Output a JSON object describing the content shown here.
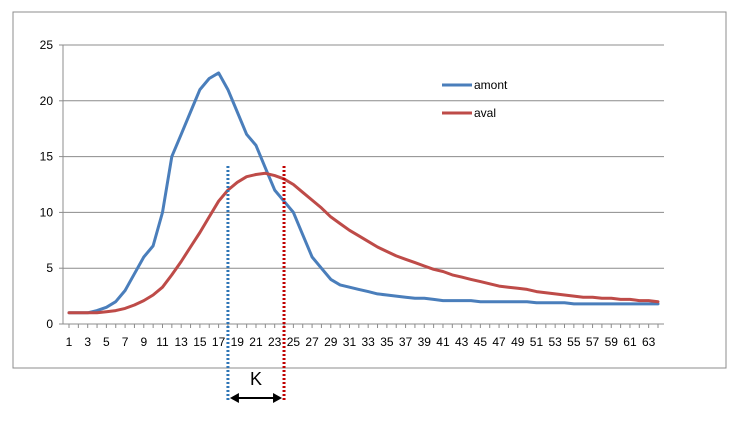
{
  "chart_data": {
    "type": "line",
    "title": "",
    "xlabel": "",
    "ylabel": "",
    "ylim": [
      0,
      25
    ],
    "yticks": [
      0,
      5,
      10,
      15,
      20,
      25
    ],
    "x": [
      1,
      2,
      3,
      4,
      5,
      6,
      7,
      8,
      9,
      10,
      11,
      12,
      13,
      14,
      15,
      16,
      17,
      18,
      19,
      20,
      21,
      22,
      23,
      24,
      25,
      26,
      27,
      28,
      29,
      30,
      31,
      32,
      33,
      34,
      35,
      36,
      37,
      38,
      39,
      40,
      41,
      42,
      43,
      44,
      45,
      46,
      47,
      48,
      49,
      50,
      51,
      52,
      53,
      54,
      55,
      56,
      57,
      58,
      59,
      60,
      61,
      62,
      63,
      64
    ],
    "xtick_labels": [
      "1",
      "3",
      "5",
      "7",
      "9",
      "11",
      "13",
      "15",
      "17",
      "19",
      "21",
      "23",
      "25",
      "27",
      "29",
      "31",
      "33",
      "35",
      "37",
      "39",
      "41",
      "43",
      "45",
      "47",
      "49",
      "51",
      "53",
      "55",
      "57",
      "59",
      "61",
      "63"
    ],
    "grid": true,
    "legend_position": "top-right",
    "series": [
      {
        "name": "amont",
        "color": "#4a7ebb",
        "values": [
          1,
          1,
          1,
          1.2,
          1.5,
          2,
          3,
          4.5,
          6,
          7,
          10,
          15,
          17,
          19,
          21,
          22,
          22.5,
          21,
          19,
          17,
          16,
          14,
          12,
          11,
          10,
          8,
          6,
          5,
          4,
          3.5,
          3.3,
          3.1,
          2.9,
          2.7,
          2.6,
          2.5,
          2.4,
          2.3,
          2.3,
          2.2,
          2.1,
          2.1,
          2.1,
          2.1,
          2,
          2,
          2,
          2,
          2,
          2,
          1.9,
          1.9,
          1.9,
          1.9,
          1.8,
          1.8,
          1.8,
          1.8,
          1.8,
          1.8,
          1.8,
          1.8,
          1.8,
          1.8
        ]
      },
      {
        "name": "aval",
        "color": "#be4b48",
        "values": [
          1,
          1,
          1,
          1,
          1.1,
          1.2,
          1.4,
          1.7,
          2.1,
          2.6,
          3.3,
          4.4,
          5.6,
          6.9,
          8.2,
          9.6,
          11,
          12,
          12.7,
          13.2,
          13.4,
          13.5,
          13.3,
          13,
          12.5,
          11.8,
          11.1,
          10.4,
          9.6,
          9,
          8.4,
          7.9,
          7.4,
          6.9,
          6.5,
          6.1,
          5.8,
          5.5,
          5.2,
          4.9,
          4.7,
          4.4,
          4.2,
          4,
          3.8,
          3.6,
          3.4,
          3.3,
          3.2,
          3.1,
          2.9,
          2.8,
          2.7,
          2.6,
          2.5,
          2.4,
          2.4,
          2.3,
          2.3,
          2.2,
          2.2,
          2.1,
          2.1,
          2
        ]
      }
    ],
    "markers": [
      {
        "x": 18,
        "color": "#2e75b6"
      },
      {
        "x": 24,
        "color": "#c00000"
      }
    ],
    "annotation": {
      "text": "K",
      "from_x": 18,
      "to_x": 24
    }
  }
}
